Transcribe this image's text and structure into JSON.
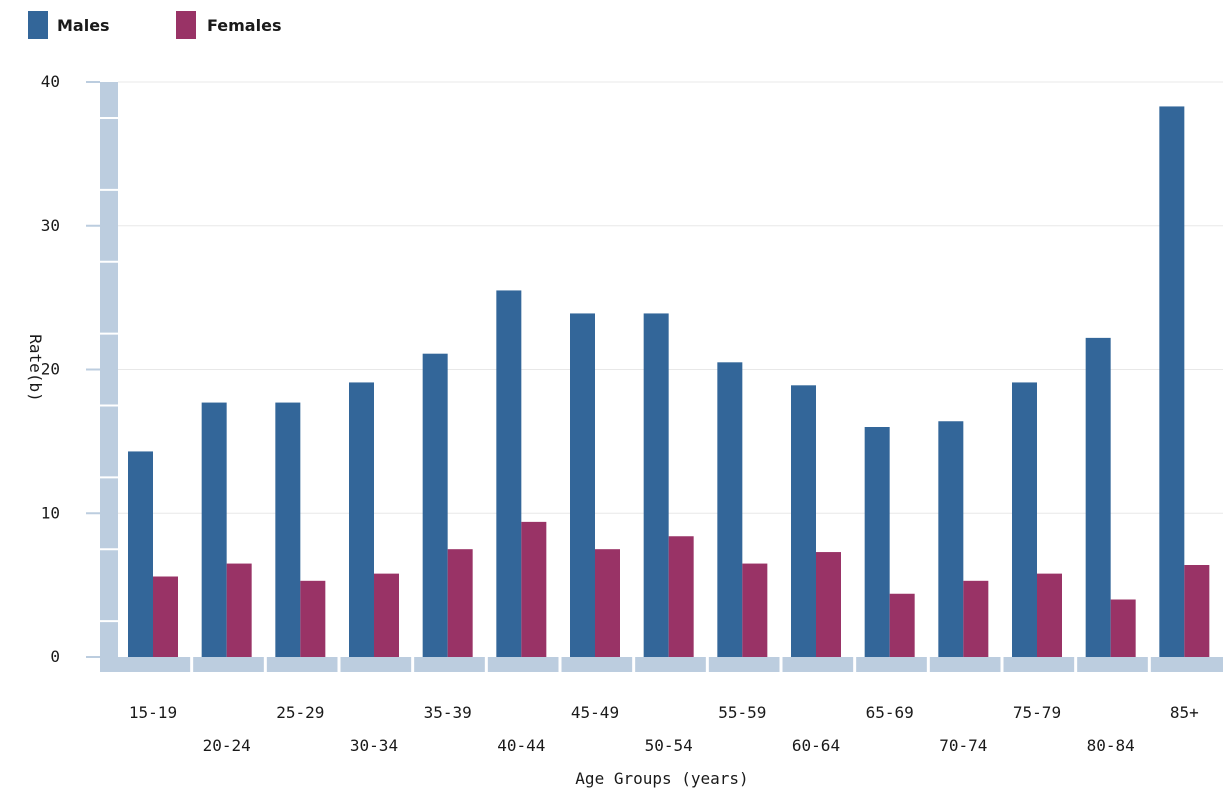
{
  "chart_data": {
    "type": "bar",
    "title": "",
    "xlabel": "Age Groups (years)",
    "ylabel": "Rate(b)",
    "ylim": [
      0,
      40
    ],
    "yticks": [
      0,
      10,
      20,
      30,
      40
    ],
    "grid": true,
    "legend_position": "top-left",
    "categories": [
      "15-19",
      "20-24",
      "25-29",
      "30-34",
      "35-39",
      "40-44",
      "45-49",
      "50-54",
      "55-59",
      "60-64",
      "65-69",
      "70-74",
      "75-79",
      "80-84",
      "85+"
    ],
    "series": [
      {
        "name": "Males",
        "color": "#336699",
        "values": [
          14.3,
          17.7,
          17.7,
          19.1,
          21.1,
          25.5,
          23.9,
          23.9,
          20.5,
          18.9,
          16.0,
          16.4,
          19.1,
          22.2,
          38.3
        ]
      },
      {
        "name": "Females",
        "color": "#993366",
        "values": [
          5.6,
          6.5,
          5.3,
          5.8,
          7.5,
          9.4,
          7.5,
          8.4,
          6.5,
          7.3,
          4.4,
          5.3,
          5.8,
          4.0,
          6.4
        ]
      }
    ]
  }
}
